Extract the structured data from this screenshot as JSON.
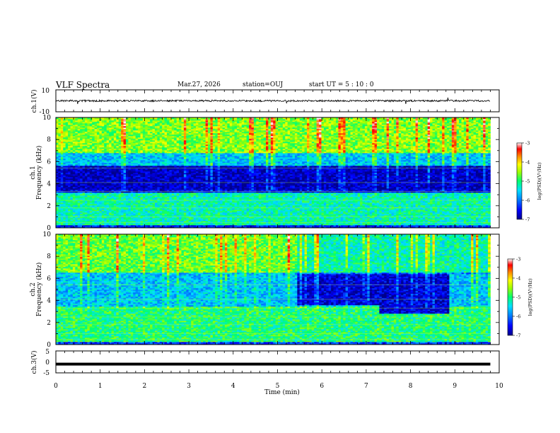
{
  "header": {
    "title": "VLF Spectra",
    "date": "Mar.27, 2026",
    "station": "station=OUJ",
    "start": "start  UT =  5 : 10 : 0"
  },
  "colors": {
    "colormap": [
      "#00008c",
      "#0000ff",
      "#0078ff",
      "#00e0ff",
      "#00ff70",
      "#a0ff00",
      "#ffff00",
      "#ff9000",
      "#ff0000",
      "#ffffff"
    ]
  },
  "chart_data": [
    {
      "type": "line",
      "name": "ch1-waveform",
      "ylabel": "ch.1(V)",
      "ylim": [
        -10,
        10
      ],
      "yticks": [
        "10",
        "-10"
      ],
      "baseline": 0,
      "note_level": "noise around 0 V with spikes up to about ±4 V"
    },
    {
      "type": "heatmap",
      "name": "ch1-spectrogram",
      "ylabel": "ch.1\nFrequency (kHz)",
      "ylim": [
        0,
        10
      ],
      "yticks": [
        "0",
        "2",
        "4",
        "6",
        "8",
        "10"
      ],
      "colorbar": {
        "label": "log(PSD)(V²/Hz)",
        "range": [
          -7,
          -3
        ],
        "ticks": [
          "-3",
          "-4",
          "-5",
          "-6",
          "-7"
        ]
      },
      "bands_khz": [
        {
          "from": 0,
          "to": 0.3,
          "level": -6.4
        },
        {
          "from": 0.3,
          "to": 3.2,
          "level": -5.2
        },
        {
          "from": 3.2,
          "to": 3.5,
          "level": -6.6
        },
        {
          "from": 3.5,
          "to": 5.6,
          "level": -6.8
        },
        {
          "from": 5.6,
          "to": 6.8,
          "level": -5.6
        },
        {
          "from": 6.8,
          "to": 10,
          "level": -4.6
        }
      ]
    },
    {
      "type": "heatmap",
      "name": "ch2-spectrogram",
      "ylabel": "ch.2\nFrequency (kHz)",
      "ylim": [
        0,
        10
      ],
      "yticks": [
        "0",
        "2",
        "4",
        "6",
        "8",
        "10"
      ],
      "colorbar": {
        "label": "log(PSD)(V²/Hz)",
        "range": [
          -7,
          -3
        ],
        "ticks": [
          "-3",
          "-4",
          "-5",
          "-6",
          "-7"
        ]
      },
      "quiet_region": {
        "t_from_min": 5.45,
        "t_to_min": 8.9,
        "f_from_khz": 3.6,
        "f_to_khz": 6.4,
        "level": -6.7
      },
      "bands_khz": [
        {
          "from": 0,
          "to": 0.3,
          "level": -6.2
        },
        {
          "from": 0.3,
          "to": 3.5,
          "level": -5.0
        },
        {
          "from": 3.5,
          "to": 6.5,
          "level": -5.6
        },
        {
          "from": 6.5,
          "to": 10,
          "level": -4.7
        }
      ]
    },
    {
      "type": "line",
      "name": "ch3-waveform",
      "ylabel": "ch.3(V)",
      "ylim": [
        -5,
        5
      ],
      "yticks": [
        "5",
        "0",
        "-5"
      ],
      "constant_value": -1.0
    }
  ],
  "xaxis": {
    "label": "Time  (min)",
    "range": [
      0,
      10
    ],
    "ticks": [
      "0",
      "1",
      "2",
      "3",
      "4",
      "5",
      "6",
      "7",
      "8",
      "9",
      "10"
    ],
    "data_end_min": 9.8
  }
}
